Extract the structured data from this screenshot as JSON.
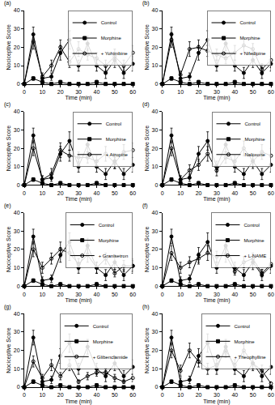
{
  "chart_data": [
    {
      "type": "line",
      "title": "(a)",
      "x_label": "Time (min)",
      "y_label": "Nociceptive Score",
      "legend": "upper right",
      "x": [
        0,
        5,
        10,
        15,
        20,
        25,
        30,
        35,
        40,
        45,
        50,
        55,
        60
      ],
      "xlim": [
        0,
        60
      ],
      "ylim": [
        0,
        40
      ],
      "xticks": [
        0,
        10,
        20,
        30,
        40,
        50,
        60
      ],
      "yticks": [
        0,
        10,
        20,
        30,
        40
      ],
      "series": [
        {
          "name": "Control",
          "color": "#000000",
          "marker": "circle",
          "line_style": "solid",
          "values": [
            0,
            27,
            3,
            4,
            17,
            24,
            10,
            22,
            10,
            6,
            13,
            6,
            11
          ],
          "errors": [
            0,
            4,
            2,
            2,
            4,
            5,
            3,
            4,
            3,
            3,
            4,
            3,
            4
          ]
        },
        {
          "name": "Morphine",
          "color": "#000000",
          "marker": "square",
          "line_style": "solid",
          "values": [
            0,
            3,
            1,
            0,
            1,
            0,
            0,
            0,
            1,
            0,
            0,
            0,
            0
          ],
          "errors": [
            0,
            1,
            1,
            0,
            1,
            0,
            0,
            0,
            1,
            0,
            0,
            0,
            0
          ]
        },
        {
          "name": "+ Yohimbine",
          "color": "#000000",
          "marker": "circle-open",
          "line_style": "solid",
          "values": [
            0,
            23,
            4,
            10,
            20,
            12,
            19,
            16,
            14,
            10,
            15,
            10,
            17
          ],
          "errors": [
            0,
            4,
            2,
            3,
            4,
            3,
            4,
            3,
            3,
            3,
            4,
            3,
            4
          ]
        }
      ]
    },
    {
      "type": "line",
      "title": "(b)",
      "x_label": "Time (min)",
      "y_label": "Nociceptive Score",
      "legend": "upper right",
      "x": [
        0,
        5,
        10,
        15,
        20,
        25,
        30,
        35,
        40,
        45,
        50,
        55,
        60
      ],
      "xlim": [
        0,
        60
      ],
      "ylim": [
        0,
        40
      ],
      "xticks": [
        0,
        10,
        20,
        30,
        40,
        50,
        60
      ],
      "yticks": [
        0,
        10,
        20,
        30,
        40
      ],
      "series": [
        {
          "name": "Control",
          "color": "#000000",
          "marker": "circle",
          "line_style": "solid",
          "values": [
            0,
            27,
            3,
            4,
            17,
            24,
            10,
            22,
            10,
            6,
            13,
            6,
            11
          ],
          "errors": [
            0,
            4,
            2,
            2,
            4,
            5,
            3,
            4,
            3,
            3,
            4,
            3,
            4
          ]
        },
        {
          "name": "Morphine",
          "color": "#000000",
          "marker": "square",
          "line_style": "solid",
          "values": [
            0,
            3,
            1,
            0,
            1,
            0,
            0,
            0,
            1,
            0,
            0,
            0,
            0
          ],
          "errors": [
            0,
            1,
            1,
            0,
            1,
            0,
            0,
            0,
            1,
            0,
            0,
            0,
            0
          ]
        },
        {
          "name": "+ Nifedipine",
          "color": "#000000",
          "marker": "circle-open",
          "line_style": "solid",
          "values": [
            0,
            24,
            5,
            19,
            20,
            18,
            16,
            14,
            17,
            21,
            19,
            8,
            13
          ],
          "errors": [
            0,
            4,
            2,
            4,
            4,
            3,
            3,
            3,
            4,
            4,
            3,
            3,
            4
          ]
        }
      ]
    },
    {
      "type": "line",
      "title": "(c)",
      "x_label": "Time (min)",
      "y_label": "Nociceptive Score",
      "legend": "upper right",
      "x": [
        0,
        5,
        10,
        15,
        20,
        25,
        30,
        35,
        40,
        45,
        50,
        55,
        60
      ],
      "xlim": [
        0,
        60
      ],
      "ylim": [
        0,
        40
      ],
      "xticks": [
        0,
        10,
        20,
        30,
        40,
        50,
        60
      ],
      "yticks": [
        0,
        10,
        20,
        30,
        40
      ],
      "series": [
        {
          "name": "Control",
          "color": "#000000",
          "marker": "circle",
          "line_style": "solid",
          "values": [
            0,
            27,
            3,
            4,
            17,
            24,
            10,
            22,
            10,
            6,
            13,
            6,
            11
          ],
          "errors": [
            0,
            4,
            2,
            2,
            4,
            5,
            3,
            4,
            3,
            3,
            4,
            3,
            4
          ]
        },
        {
          "name": "Morphine",
          "color": "#000000",
          "marker": "square",
          "line_style": "solid",
          "values": [
            0,
            3,
            1,
            0,
            1,
            0,
            0,
            0,
            1,
            0,
            0,
            0,
            0
          ],
          "errors": [
            0,
            1,
            1,
            0,
            1,
            0,
            0,
            0,
            1,
            0,
            0,
            0,
            0
          ]
        },
        {
          "name": "+ Atropine",
          "color": "#000000",
          "marker": "circle-open",
          "line_style": "solid",
          "values": [
            0,
            20,
            3,
            6,
            19,
            16,
            15,
            15,
            13,
            17,
            12,
            18,
            19
          ],
          "errors": [
            0,
            4,
            2,
            3,
            4,
            3,
            3,
            3,
            3,
            4,
            3,
            4,
            4
          ]
        }
      ]
    },
    {
      "type": "line",
      "title": "(d)",
      "x_label": "Time (min)",
      "y_label": "Nociceptive Score",
      "legend": "upper right",
      "x": [
        0,
        5,
        10,
        15,
        20,
        25,
        30,
        35,
        40,
        45,
        50,
        55,
        60
      ],
      "xlim": [
        0,
        60
      ],
      "ylim": [
        0,
        40
      ],
      "xticks": [
        0,
        10,
        20,
        30,
        40,
        50,
        60
      ],
      "yticks": [
        0,
        10,
        20,
        30,
        40
      ],
      "series": [
        {
          "name": "Control",
          "color": "#000000",
          "marker": "circle",
          "line_style": "solid",
          "values": [
            0,
            27,
            3,
            4,
            17,
            24,
            10,
            22,
            10,
            6,
            13,
            6,
            11
          ],
          "errors": [
            0,
            4,
            2,
            2,
            4,
            5,
            3,
            4,
            3,
            3,
            4,
            3,
            4
          ]
        },
        {
          "name": "Morphine",
          "color": "#000000",
          "marker": "square",
          "line_style": "solid",
          "values": [
            0,
            3,
            1,
            0,
            1,
            0,
            0,
            0,
            1,
            0,
            0,
            0,
            0
          ],
          "errors": [
            0,
            1,
            1,
            0,
            1,
            0,
            0,
            0,
            1,
            0,
            0,
            0,
            0
          ]
        },
        {
          "name": "Naloxone",
          "color": "#000000",
          "marker": "circle-open",
          "line_style": "solid",
          "values": [
            0,
            20,
            3,
            8,
            11,
            17,
            8,
            15,
            13,
            20,
            13,
            18,
            16
          ],
          "errors": [
            0,
            4,
            2,
            3,
            3,
            4,
            3,
            3,
            3,
            4,
            3,
            4,
            4
          ]
        }
      ]
    },
    {
      "type": "line",
      "title": "(e)",
      "x_label": "Time (min)",
      "y_label": "Nociceptive Score",
      "legend": "upper right",
      "x": [
        0,
        5,
        10,
        15,
        20,
        25,
        30,
        35,
        40,
        45,
        50,
        55,
        60
      ],
      "xlim": [
        0,
        60
      ],
      "ylim": [
        0,
        40
      ],
      "xticks": [
        0,
        10,
        20,
        30,
        40,
        50,
        60
      ],
      "yticks": [
        0,
        10,
        20,
        30,
        40
      ],
      "series": [
        {
          "name": "Control",
          "color": "#000000",
          "marker": "circle",
          "line_style": "solid",
          "values": [
            0,
            27,
            3,
            4,
            17,
            24,
            10,
            22,
            10,
            6,
            13,
            6,
            11
          ],
          "errors": [
            0,
            4,
            2,
            2,
            4,
            5,
            3,
            4,
            3,
            3,
            4,
            3,
            4
          ]
        },
        {
          "name": "Morphine",
          "color": "#000000",
          "marker": "square",
          "line_style": "solid",
          "values": [
            0,
            3,
            1,
            0,
            1,
            0,
            0,
            0,
            1,
            0,
            0,
            0,
            0
          ],
          "errors": [
            0,
            1,
            1,
            0,
            1,
            0,
            0,
            0,
            1,
            0,
            0,
            0,
            0
          ]
        },
        {
          "name": "+ Granisetron",
          "color": "#000000",
          "marker": "circle-open",
          "line_style": "solid",
          "values": [
            0,
            20,
            10,
            15,
            20,
            18,
            12,
            17,
            10,
            15,
            7,
            11,
            11
          ],
          "errors": [
            0,
            4,
            3,
            3,
            4,
            4,
            3,
            4,
            3,
            3,
            2,
            3,
            3
          ]
        }
      ]
    },
    {
      "type": "line",
      "title": "(f)",
      "x_label": "Time (min)",
      "y_label": "Nociceptive Score",
      "legend": "upper right",
      "x": [
        0,
        5,
        10,
        15,
        20,
        25,
        30,
        35,
        40,
        45,
        50,
        55,
        60
      ],
      "xlim": [
        0,
        60
      ],
      "ylim": [
        0,
        40
      ],
      "xticks": [
        0,
        10,
        20,
        30,
        40,
        50,
        60
      ],
      "yticks": [
        0,
        10,
        20,
        30,
        40
      ],
      "series": [
        {
          "name": "Control",
          "color": "#000000",
          "marker": "circle",
          "line_style": "solid",
          "values": [
            0,
            27,
            3,
            4,
            17,
            24,
            10,
            22,
            10,
            6,
            13,
            6,
            11
          ],
          "errors": [
            0,
            4,
            2,
            2,
            4,
            5,
            3,
            4,
            3,
            3,
            4,
            3,
            4
          ]
        },
        {
          "name": "Morphine",
          "color": "#000000",
          "marker": "square",
          "line_style": "solid",
          "values": [
            0,
            3,
            1,
            0,
            1,
            0,
            0,
            0,
            1,
            0,
            0,
            0,
            0
          ],
          "errors": [
            0,
            1,
            1,
            0,
            1,
            0,
            0,
            0,
            1,
            0,
            0,
            0,
            0
          ]
        },
        {
          "name": "+ L-NAME",
          "color": "#000000",
          "marker": "circle-open",
          "line_style": "solid",
          "values": [
            0,
            18,
            10,
            13,
            15,
            18,
            16,
            17,
            8,
            13,
            15,
            7,
            12
          ],
          "errors": [
            0,
            4,
            3,
            3,
            3,
            4,
            3,
            4,
            2,
            3,
            3,
            2,
            3
          ]
        }
      ]
    },
    {
      "type": "line",
      "title": "(g)",
      "x_label": "Time (min)",
      "y_label": "Nociceptive Score",
      "legend": "upper right",
      "x": [
        0,
        5,
        10,
        15,
        20,
        25,
        30,
        35,
        40,
        45,
        50,
        55,
        60
      ],
      "xlim": [
        0,
        60
      ],
      "ylim": [
        0,
        40
      ],
      "xticks": [
        0,
        10,
        20,
        30,
        40,
        50,
        60
      ],
      "yticks": [
        0,
        10,
        20,
        30,
        40
      ],
      "series": [
        {
          "name": "Control",
          "color": "#000000",
          "marker": "circle",
          "line_style": "solid",
          "values": [
            0,
            27,
            3,
            4,
            17,
            24,
            10,
            22,
            10,
            6,
            13,
            6,
            11
          ],
          "errors": [
            0,
            4,
            2,
            2,
            4,
            5,
            3,
            4,
            3,
            3,
            4,
            3,
            4
          ]
        },
        {
          "name": "Morphine",
          "color": "#000000",
          "marker": "square",
          "line_style": "solid",
          "values": [
            0,
            3,
            1,
            0,
            1,
            0,
            0,
            0,
            1,
            0,
            0,
            0,
            0
          ],
          "errors": [
            0,
            1,
            1,
            0,
            1,
            0,
            0,
            0,
            1,
            0,
            0,
            0,
            0
          ]
        },
        {
          "name": "+ Glibenclamide",
          "color": "#000000",
          "marker": "circle-open",
          "line_style": "solid",
          "values": [
            0,
            14,
            5,
            12,
            6,
            12,
            3,
            6,
            8,
            8,
            5,
            3,
            5
          ],
          "errors": [
            0,
            3,
            2,
            3,
            2,
            3,
            1,
            2,
            2,
            2,
            2,
            1,
            2
          ]
        }
      ]
    },
    {
      "type": "line",
      "title": "(h)",
      "x_label": "Time (min)",
      "y_label": "Nociceptive Score",
      "legend": "upper right",
      "x": [
        0,
        5,
        10,
        15,
        20,
        25,
        30,
        35,
        40,
        45,
        50,
        55,
        60
      ],
      "xlim": [
        0,
        60
      ],
      "ylim": [
        0,
        40
      ],
      "xticks": [
        0,
        10,
        20,
        30,
        40,
        50,
        60
      ],
      "yticks": [
        0,
        10,
        20,
        30,
        40
      ],
      "series": [
        {
          "name": "Control",
          "color": "#000000",
          "marker": "circle",
          "line_style": "solid",
          "values": [
            0,
            27,
            3,
            4,
            17,
            24,
            10,
            22,
            10,
            6,
            13,
            6,
            11
          ],
          "errors": [
            0,
            4,
            2,
            2,
            4,
            5,
            3,
            4,
            3,
            3,
            4,
            3,
            4
          ]
        },
        {
          "name": "Morphine",
          "color": "#000000",
          "marker": "square",
          "line_style": "solid",
          "values": [
            0,
            3,
            1,
            0,
            1,
            0,
            0,
            0,
            1,
            0,
            0,
            0,
            0
          ],
          "errors": [
            0,
            1,
            1,
            0,
            1,
            0,
            0,
            0,
            1,
            0,
            0,
            0,
            0
          ]
        },
        {
          "name": "+ Theophylline",
          "color": "#000000",
          "marker": "circle-open",
          "line_style": "solid",
          "values": [
            0,
            20,
            9,
            20,
            14,
            10,
            12,
            20,
            12,
            20,
            13,
            9,
            2
          ],
          "errors": [
            0,
            4,
            3,
            4,
            3,
            3,
            3,
            4,
            3,
            4,
            3,
            3,
            1
          ]
        }
      ]
    }
  ]
}
